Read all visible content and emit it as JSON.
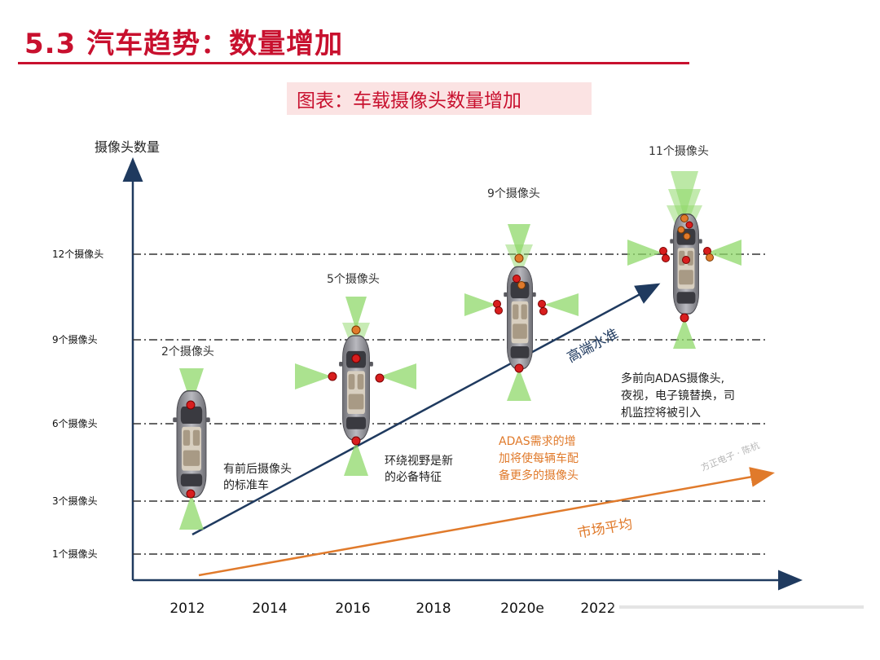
{
  "header": {
    "title": "5.3 汽车趋势：数量增加",
    "subtitle": "图表：车载摄像头数量增加"
  },
  "diagram": {
    "y_axis_label": "摄像头数量",
    "y_levels": [
      "12个摄像头",
      "9个摄像头",
      "6个摄像头",
      "3个摄像头",
      "1个摄像头"
    ],
    "x_ticks": [
      "2012",
      "2014",
      "2016",
      "2018",
      "2020e",
      "2022"
    ],
    "stages": [
      {
        "label": "2个摄像头",
        "cameras": 2,
        "note": [
          "有前后摄像头",
          "的标准车"
        ]
      },
      {
        "label": "5个摄像头",
        "cameras": 5,
        "note": [
          "环绕视野是新",
          "的必备特征"
        ]
      },
      {
        "label": "9个摄像头",
        "cameras": 9,
        "note": []
      },
      {
        "label": "11个摄像头",
        "cameras": 11,
        "note": [
          "多前向ADAS摄像头,",
          "夜视，电子镜替换，司",
          "机监控将被引入"
        ]
      }
    ],
    "adas_note": [
      "ADAS需求的增",
      "加将使每辆车配",
      "备更多的摄像头"
    ],
    "trend_high": "高端水准",
    "trend_market": "市场平均",
    "watermark": "方正电子 · 陈杭",
    "colors": {
      "title_red": "#c8102e",
      "subtitle_bg": "#fbe3e3",
      "axis_navy": "#1f3a5f",
      "orange": "#e07a2b",
      "camera_red": "#d81e1e",
      "view_green": "#8fd86a"
    }
  }
}
